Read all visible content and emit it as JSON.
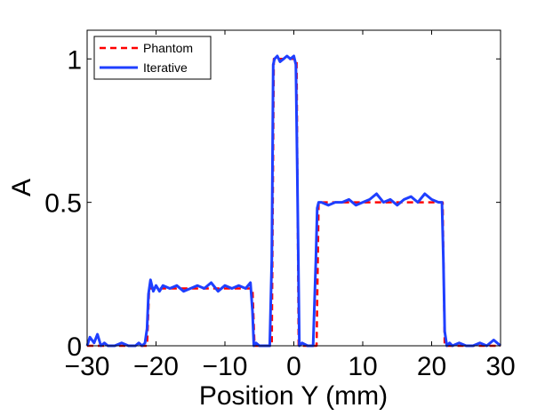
{
  "chart_data": {
    "type": "line",
    "xlabel": "Position Y (mm)",
    "ylabel": "A",
    "xlim": [
      -30,
      30
    ],
    "ylim": [
      0,
      1.1
    ],
    "xticks": [
      -30,
      -20,
      -10,
      0,
      10,
      20,
      30
    ],
    "xtick_labels": [
      "−30",
      "−20",
      "−10",
      "0",
      "10",
      "20",
      "30"
    ],
    "yticks": [
      0,
      0.5,
      1
    ],
    "ytick_labels": [
      "0",
      "0.5",
      "1"
    ],
    "grid": false,
    "legend_position": "top-left",
    "series": [
      {
        "name": "Phantom",
        "color": "#ff0000",
        "style": "dashed",
        "x": [
          -30,
          -21.3,
          -21.0,
          -6.0,
          -5.7,
          -3.2,
          -2.9,
          0.4,
          0.7,
          3.3,
          3.6,
          21.6,
          21.9,
          30
        ],
        "y": [
          0,
          0,
          0.2,
          0.2,
          0,
          0,
          1.0,
          1.0,
          0,
          0,
          0.5,
          0.5,
          0,
          0
        ]
      },
      {
        "name": "Iterative",
        "color": "#1f3fff",
        "style": "solid",
        "x": [
          -30,
          -29.6,
          -29.0,
          -28.5,
          -28.0,
          -27.5,
          -27.0,
          -26.0,
          -25.0,
          -24.0,
          -23.0,
          -22.5,
          -22.0,
          -21.6,
          -21.3,
          -21.1,
          -20.8,
          -20.4,
          -20.0,
          -19.5,
          -19.0,
          -18.0,
          -17.0,
          -16.0,
          -15.0,
          -14.0,
          -13.0,
          -12.0,
          -11.0,
          -10.0,
          -9.0,
          -8.0,
          -7.0,
          -6.3,
          -6.0,
          -5.8,
          -5.5,
          -5.0,
          -4.5,
          -4.0,
          -3.5,
          -3.2,
          -3.0,
          -2.8,
          -2.4,
          -2.0,
          -1.5,
          -1.0,
          -0.5,
          0.0,
          0.3,
          0.5,
          0.8,
          1.2,
          2.0,
          2.8,
          3.2,
          3.4,
          3.6,
          4.0,
          5.0,
          6.0,
          7.0,
          8.0,
          9.0,
          10.0,
          11.0,
          12.0,
          13.0,
          14.0,
          15.0,
          16.0,
          17.0,
          18.0,
          19.0,
          20.0,
          21.0,
          21.5,
          21.7,
          21.9,
          22.2,
          22.6,
          23.0,
          24.0,
          25.0,
          26.0,
          27.0,
          28.0,
          29.0,
          30.0
        ],
        "y": [
          0.0,
          0.03,
          0.01,
          0.04,
          0.0,
          0.01,
          0.0,
          0.0,
          0.01,
          0.0,
          0.0,
          0.01,
          0.0,
          0.01,
          0.06,
          0.18,
          0.23,
          0.19,
          0.21,
          0.19,
          0.21,
          0.2,
          0.21,
          0.19,
          0.2,
          0.21,
          0.2,
          0.22,
          0.19,
          0.21,
          0.2,
          0.21,
          0.2,
          0.22,
          0.12,
          0.0,
          0.01,
          0.0,
          0.0,
          0.0,
          0.0,
          0.3,
          0.98,
          1.0,
          1.01,
          0.99,
          1.0,
          1.01,
          1.0,
          1.01,
          0.98,
          0.6,
          0.0,
          0.01,
          0.0,
          0.0,
          0.3,
          0.48,
          0.5,
          0.5,
          0.49,
          0.5,
          0.5,
          0.51,
          0.49,
          0.5,
          0.51,
          0.53,
          0.5,
          0.51,
          0.49,
          0.51,
          0.52,
          0.5,
          0.53,
          0.51,
          0.5,
          0.5,
          0.3,
          0.05,
          0.0,
          0.01,
          0.0,
          0.01,
          0.0,
          0.0,
          0.01,
          0.0,
          0.02,
          0.0
        ]
      }
    ]
  }
}
